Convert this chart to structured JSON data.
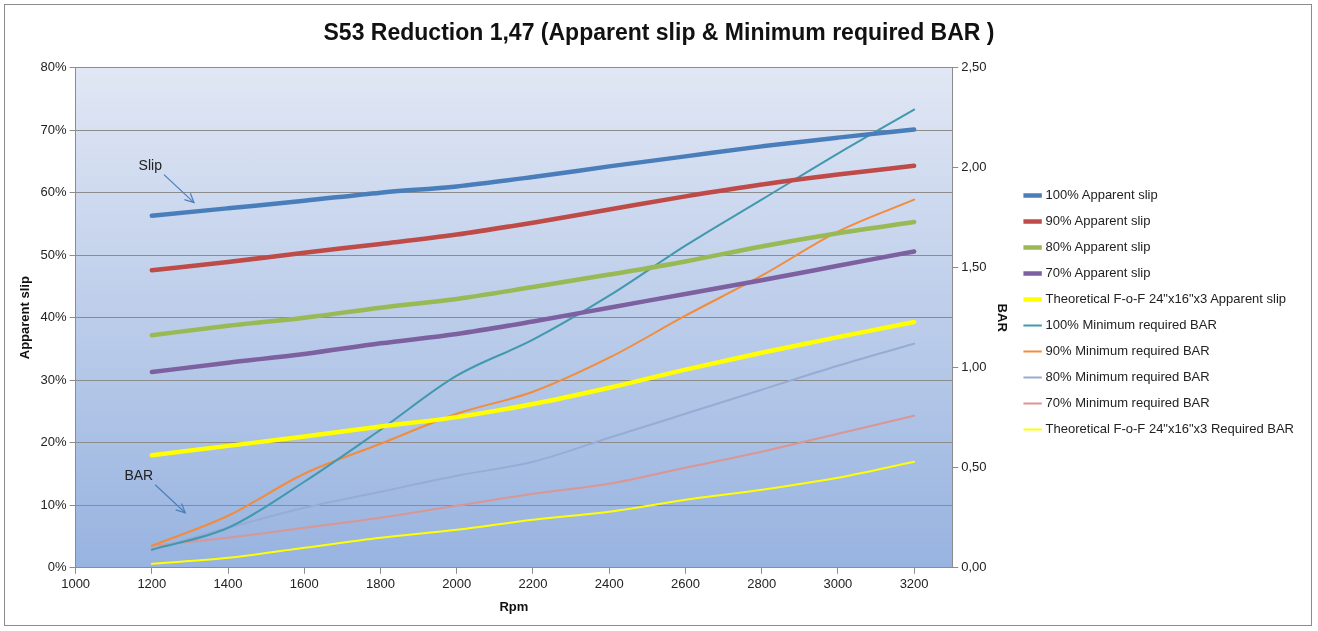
{
  "chart_data": {
    "type": "line",
    "title": "S53 Reduction 1,47 (Apparent slip & Minimum required BAR )",
    "xlabel": "Rpm",
    "ylabel": "Apparent slip",
    "y2label": "BAR",
    "x": [
      1200,
      1400,
      1600,
      1800,
      2000,
      2200,
      2400,
      2600,
      2800,
      3000,
      3200
    ],
    "series": [
      {
        "name": "100% Apparent slip",
        "color": "#4a7ebb",
        "values": [
          56.3,
          57.5,
          58.7,
          60.0,
          61.0,
          62.5,
          64.2,
          65.8,
          67.4,
          68.8,
          70.1
        ]
      },
      {
        "name": "90% Apparent slip",
        "color": "#be4b48",
        "values": [
          47.6,
          48.9,
          50.4,
          51.8,
          53.3,
          55.2,
          57.3,
          59.4,
          61.3,
          62.9,
          64.3
        ]
      },
      {
        "name": "80% Apparent slip",
        "color": "#98b954",
        "values": [
          37.2,
          38.7,
          40.0,
          41.6,
          43.0,
          44.9,
          46.9,
          49.0,
          51.4,
          53.5,
          55.3
        ]
      },
      {
        "name": "70% Apparent slip",
        "color": "#7d60a0",
        "values": [
          31.3,
          32.8,
          34.2,
          35.9,
          37.4,
          39.4,
          41.6,
          43.8,
          46.0,
          48.3,
          50.6
        ]
      },
      {
        "name": "Theoretical F-o-F 24\"x16\"x3 Apparent slip",
        "color": "#ffff00",
        "values": [
          18.0,
          19.5,
          21.0,
          22.6,
          24.1,
          26.2,
          28.8,
          31.7,
          34.4,
          36.9,
          39.3
        ]
      },
      {
        "name": "100% Minimum required BAR",
        "color": "#4198af",
        "axis": "y2",
        "values": [
          0.09,
          0.2,
          0.43,
          0.69,
          0.96,
          1.14,
          1.36,
          1.61,
          1.84,
          2.07,
          2.29
        ]
      },
      {
        "name": "90% Minimum required BAR",
        "color": "#f28c3a",
        "axis": "y2",
        "values": [
          0.11,
          0.26,
          0.47,
          0.62,
          0.77,
          0.88,
          1.05,
          1.26,
          1.46,
          1.68,
          1.84
        ]
      },
      {
        "name": "80% Minimum required BAR",
        "color": "#97acd4",
        "axis": "y2",
        "values": [
          0.09,
          0.2,
          0.3,
          0.38,
          0.46,
          0.53,
          0.65,
          0.77,
          0.89,
          1.01,
          1.12
        ]
      },
      {
        "name": "70% Minimum required BAR",
        "color": "#d99694",
        "axis": "y2",
        "values": [
          0.11,
          0.15,
          0.2,
          0.25,
          0.31,
          0.37,
          0.42,
          0.5,
          0.58,
          0.67,
          0.76
        ]
      },
      {
        "name": "Theoretical F-o-F 24\"x16\"x3 Required BAR",
        "color": "#ffff00",
        "axis": "y2",
        "values": [
          0.02,
          0.05,
          0.1,
          0.15,
          0.19,
          0.24,
          0.28,
          0.34,
          0.39,
          0.45,
          0.53
        ]
      }
    ],
    "xlim": [
      1000,
      3300
    ],
    "xticks": [
      1000,
      1200,
      1400,
      1600,
      1800,
      2000,
      2200,
      2400,
      2600,
      2800,
      3000,
      3200
    ],
    "ylim": [
      0,
      80
    ],
    "yticks": [
      {
        "value": 0,
        "label": "0%"
      },
      {
        "value": 10,
        "label": "10%"
      },
      {
        "value": 20,
        "label": "20%"
      },
      {
        "value": 30,
        "label": "30%"
      },
      {
        "value": 40,
        "label": "40%"
      },
      {
        "value": 50,
        "label": "50%"
      },
      {
        "value": 60,
        "label": "60%"
      },
      {
        "value": 70,
        "label": "70%"
      },
      {
        "value": 80,
        "label": "80%"
      }
    ],
    "y2lim": [
      0,
      2.5
    ],
    "y2ticks": [
      {
        "value": 0,
        "label": "0,00"
      },
      {
        "value": 0.5,
        "label": "0,50"
      },
      {
        "value": 1,
        "label": "1,00"
      },
      {
        "value": 1.5,
        "label": "1,50"
      },
      {
        "value": 2,
        "label": "2,00"
      },
      {
        "value": 2.5,
        "label": "2,50"
      }
    ],
    "annotations": [
      "Slip",
      "BAR"
    ],
    "grid": "y",
    "legend": "right",
    "marker": "none",
    "line_style": "solid"
  }
}
